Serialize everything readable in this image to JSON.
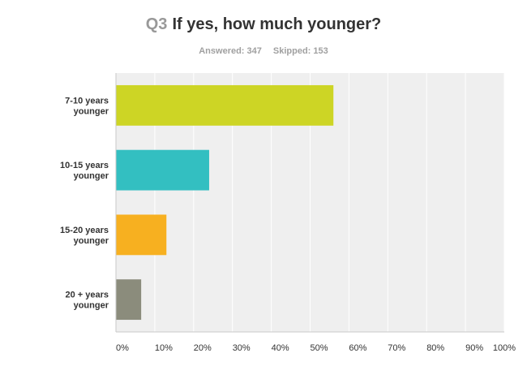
{
  "header": {
    "question_number": "Q3",
    "question_text": "If yes, how much younger?",
    "answered": "Answered: 347",
    "skipped": "Skipped: 153"
  },
  "colors": {
    "plot_background": "#efefef",
    "gridline": "#ffffff",
    "axis": "#c8c8c8"
  },
  "chart_data": {
    "type": "bar",
    "orientation": "horizontal",
    "title": "If yes, how much younger?",
    "xlabel": "",
    "ylabel": "",
    "xlim": [
      0,
      100
    ],
    "grid": true,
    "tick_labels": [
      "0%",
      "10%",
      "20%",
      "30%",
      "40%",
      "50%",
      "60%",
      "70%",
      "80%",
      "90%",
      "100%"
    ],
    "categories": [
      [
        "7-10 years",
        "younger"
      ],
      [
        "10-15 years",
        "younger"
      ],
      [
        "15-20 years",
        "younger"
      ],
      [
        "20 + years",
        "younger"
      ]
    ],
    "values": [
      56,
      24,
      13,
      6.5
    ],
    "bar_colors": [
      "#cdd525",
      "#33bfc1",
      "#f7b020",
      "#8b8c7c"
    ]
  }
}
